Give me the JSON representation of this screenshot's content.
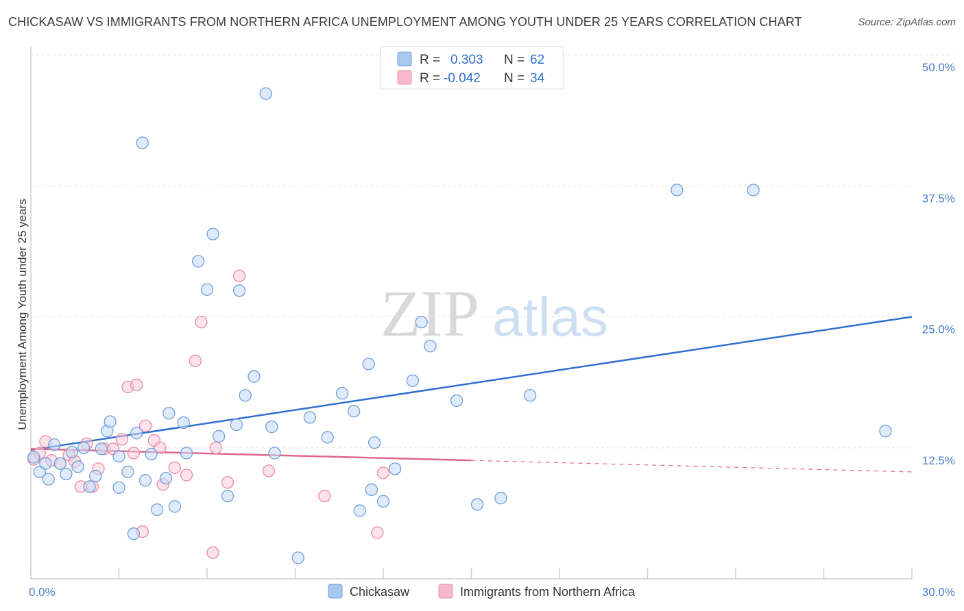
{
  "title": "CHICKASAW VS IMMIGRANTS FROM NORTHERN AFRICA UNEMPLOYMENT AMONG YOUTH UNDER 25 YEARS CORRELATION CHART",
  "source": "Source: ZipAtlas.com",
  "watermark": {
    "zip": "ZIP",
    "atlas": "atlas"
  },
  "legend_top": [
    {
      "r_label": "R =",
      "r_value": "0.303",
      "n_label": "N =",
      "n_value": "62",
      "color": "#a8c8f0",
      "stroke": "#6f9fd8"
    },
    {
      "r_label": "R =",
      "r_value": "-0.042",
      "n_label": "N =",
      "n_value": "34",
      "color": "#f7b9cc",
      "stroke": "#e88aa8"
    }
  ],
  "legend_bottom": [
    {
      "label": "Chickasaw",
      "color": "#a8c8f0",
      "stroke": "#6f9fd8"
    },
    {
      "label": "Immigrants from Northern Africa",
      "color": "#f7b9cc",
      "stroke": "#e88aa8"
    }
  ],
  "chart_data": {
    "type": "scatter",
    "ylabel": "Unemployment Among Youth under 25 years",
    "xlim": [
      0,
      30
    ],
    "ylim": [
      0,
      50
    ],
    "x_tick_labels": [
      {
        "value": 0,
        "label": "0.0%"
      },
      {
        "value": 30,
        "label": "30.0%"
      }
    ],
    "y_tick_labels": [
      {
        "value": 12.5,
        "label": "12.5%"
      },
      {
        "value": 25,
        "label": "25.0%"
      },
      {
        "value": 37.5,
        "label": "37.5%"
      },
      {
        "value": 50,
        "label": "50.0%"
      }
    ],
    "grid": true,
    "series": [
      {
        "name": "Chickasaw",
        "color": "#6f9fd8",
        "fill": "#c4daf5",
        "trend_color": "#2f6fcf",
        "trend": {
          "x0": 0,
          "y0": 12.3,
          "x1": 30,
          "y1": 25.0
        },
        "points": [
          [
            0.1,
            11.6
          ],
          [
            0.3,
            10.2
          ],
          [
            0.5,
            11.0
          ],
          [
            0.6,
            9.5
          ],
          [
            0.8,
            12.8
          ],
          [
            1.0,
            11.0
          ],
          [
            1.2,
            10.0
          ],
          [
            1.4,
            12.1
          ],
          [
            1.6,
            10.7
          ],
          [
            1.8,
            12.5
          ],
          [
            2.0,
            8.8
          ],
          [
            2.2,
            9.8
          ],
          [
            2.4,
            12.4
          ],
          [
            2.6,
            14.1
          ],
          [
            2.7,
            15.0
          ],
          [
            3.0,
            8.7
          ],
          [
            3.0,
            11.7
          ],
          [
            3.3,
            10.2
          ],
          [
            3.5,
            4.3
          ],
          [
            3.6,
            13.9
          ],
          [
            3.8,
            41.6
          ],
          [
            3.9,
            9.4
          ],
          [
            4.1,
            11.9
          ],
          [
            4.3,
            6.6
          ],
          [
            4.6,
            9.6
          ],
          [
            4.7,
            15.8
          ],
          [
            4.9,
            6.9
          ],
          [
            5.2,
            14.9
          ],
          [
            5.3,
            12.0
          ],
          [
            5.7,
            30.3
          ],
          [
            6.0,
            27.6
          ],
          [
            6.2,
            32.9
          ],
          [
            6.4,
            13.6
          ],
          [
            6.7,
            7.9
          ],
          [
            7.0,
            14.7
          ],
          [
            7.1,
            27.5
          ],
          [
            7.3,
            17.5
          ],
          [
            7.6,
            19.3
          ],
          [
            8.0,
            46.3
          ],
          [
            8.2,
            14.5
          ],
          [
            8.3,
            12.0
          ],
          [
            9.1,
            2.0
          ],
          [
            9.5,
            15.4
          ],
          [
            10.1,
            13.5
          ],
          [
            10.6,
            17.7
          ],
          [
            11.0,
            16.0
          ],
          [
            11.2,
            6.5
          ],
          [
            11.5,
            20.5
          ],
          [
            11.6,
            8.5
          ],
          [
            11.7,
            13.0
          ],
          [
            12.0,
            7.4
          ],
          [
            12.4,
            10.5
          ],
          [
            13.0,
            18.9
          ],
          [
            13.3,
            24.5
          ],
          [
            13.6,
            22.2
          ],
          [
            14.5,
            17.0
          ],
          [
            15.2,
            7.1
          ],
          [
            16.0,
            7.7
          ],
          [
            17.0,
            17.5
          ],
          [
            22.0,
            37.1
          ],
          [
            24.6,
            37.1
          ],
          [
            29.1,
            14.1
          ]
        ]
      },
      {
        "name": "Immigrants from Northern Africa",
        "color": "#e88aa8",
        "fill": "#f9cad8",
        "trend_color": "#e0668f",
        "trend": {
          "x0": 0,
          "y0": 12.4,
          "x1": 15,
          "y1": 11.3
        },
        "trend_dashed": {
          "x0": 15,
          "y0": 11.3,
          "x1": 30,
          "y1": 10.2
        },
        "points": [
          [
            0.1,
            11.4
          ],
          [
            0.3,
            12.0
          ],
          [
            0.5,
            13.1
          ],
          [
            0.7,
            11.3
          ],
          [
            1.0,
            11.0
          ],
          [
            1.3,
            11.8
          ],
          [
            1.5,
            11.2
          ],
          [
            1.7,
            8.8
          ],
          [
            1.9,
            12.9
          ],
          [
            2.1,
            8.8
          ],
          [
            2.3,
            10.5
          ],
          [
            2.5,
            12.4
          ],
          [
            2.8,
            12.4
          ],
          [
            3.1,
            13.3
          ],
          [
            3.3,
            18.3
          ],
          [
            3.5,
            12.0
          ],
          [
            3.6,
            18.5
          ],
          [
            3.8,
            4.5
          ],
          [
            3.9,
            14.6
          ],
          [
            4.2,
            13.2
          ],
          [
            4.4,
            12.5
          ],
          [
            4.5,
            9.0
          ],
          [
            4.9,
            10.6
          ],
          [
            5.3,
            9.9
          ],
          [
            5.8,
            24.5
          ],
          [
            5.6,
            20.8
          ],
          [
            6.2,
            2.5
          ],
          [
            6.3,
            12.5
          ],
          [
            6.7,
            9.2
          ],
          [
            7.1,
            28.9
          ],
          [
            8.1,
            10.3
          ],
          [
            10.0,
            7.9
          ],
          [
            11.8,
            4.4
          ],
          [
            12.0,
            10.1
          ]
        ]
      }
    ]
  }
}
